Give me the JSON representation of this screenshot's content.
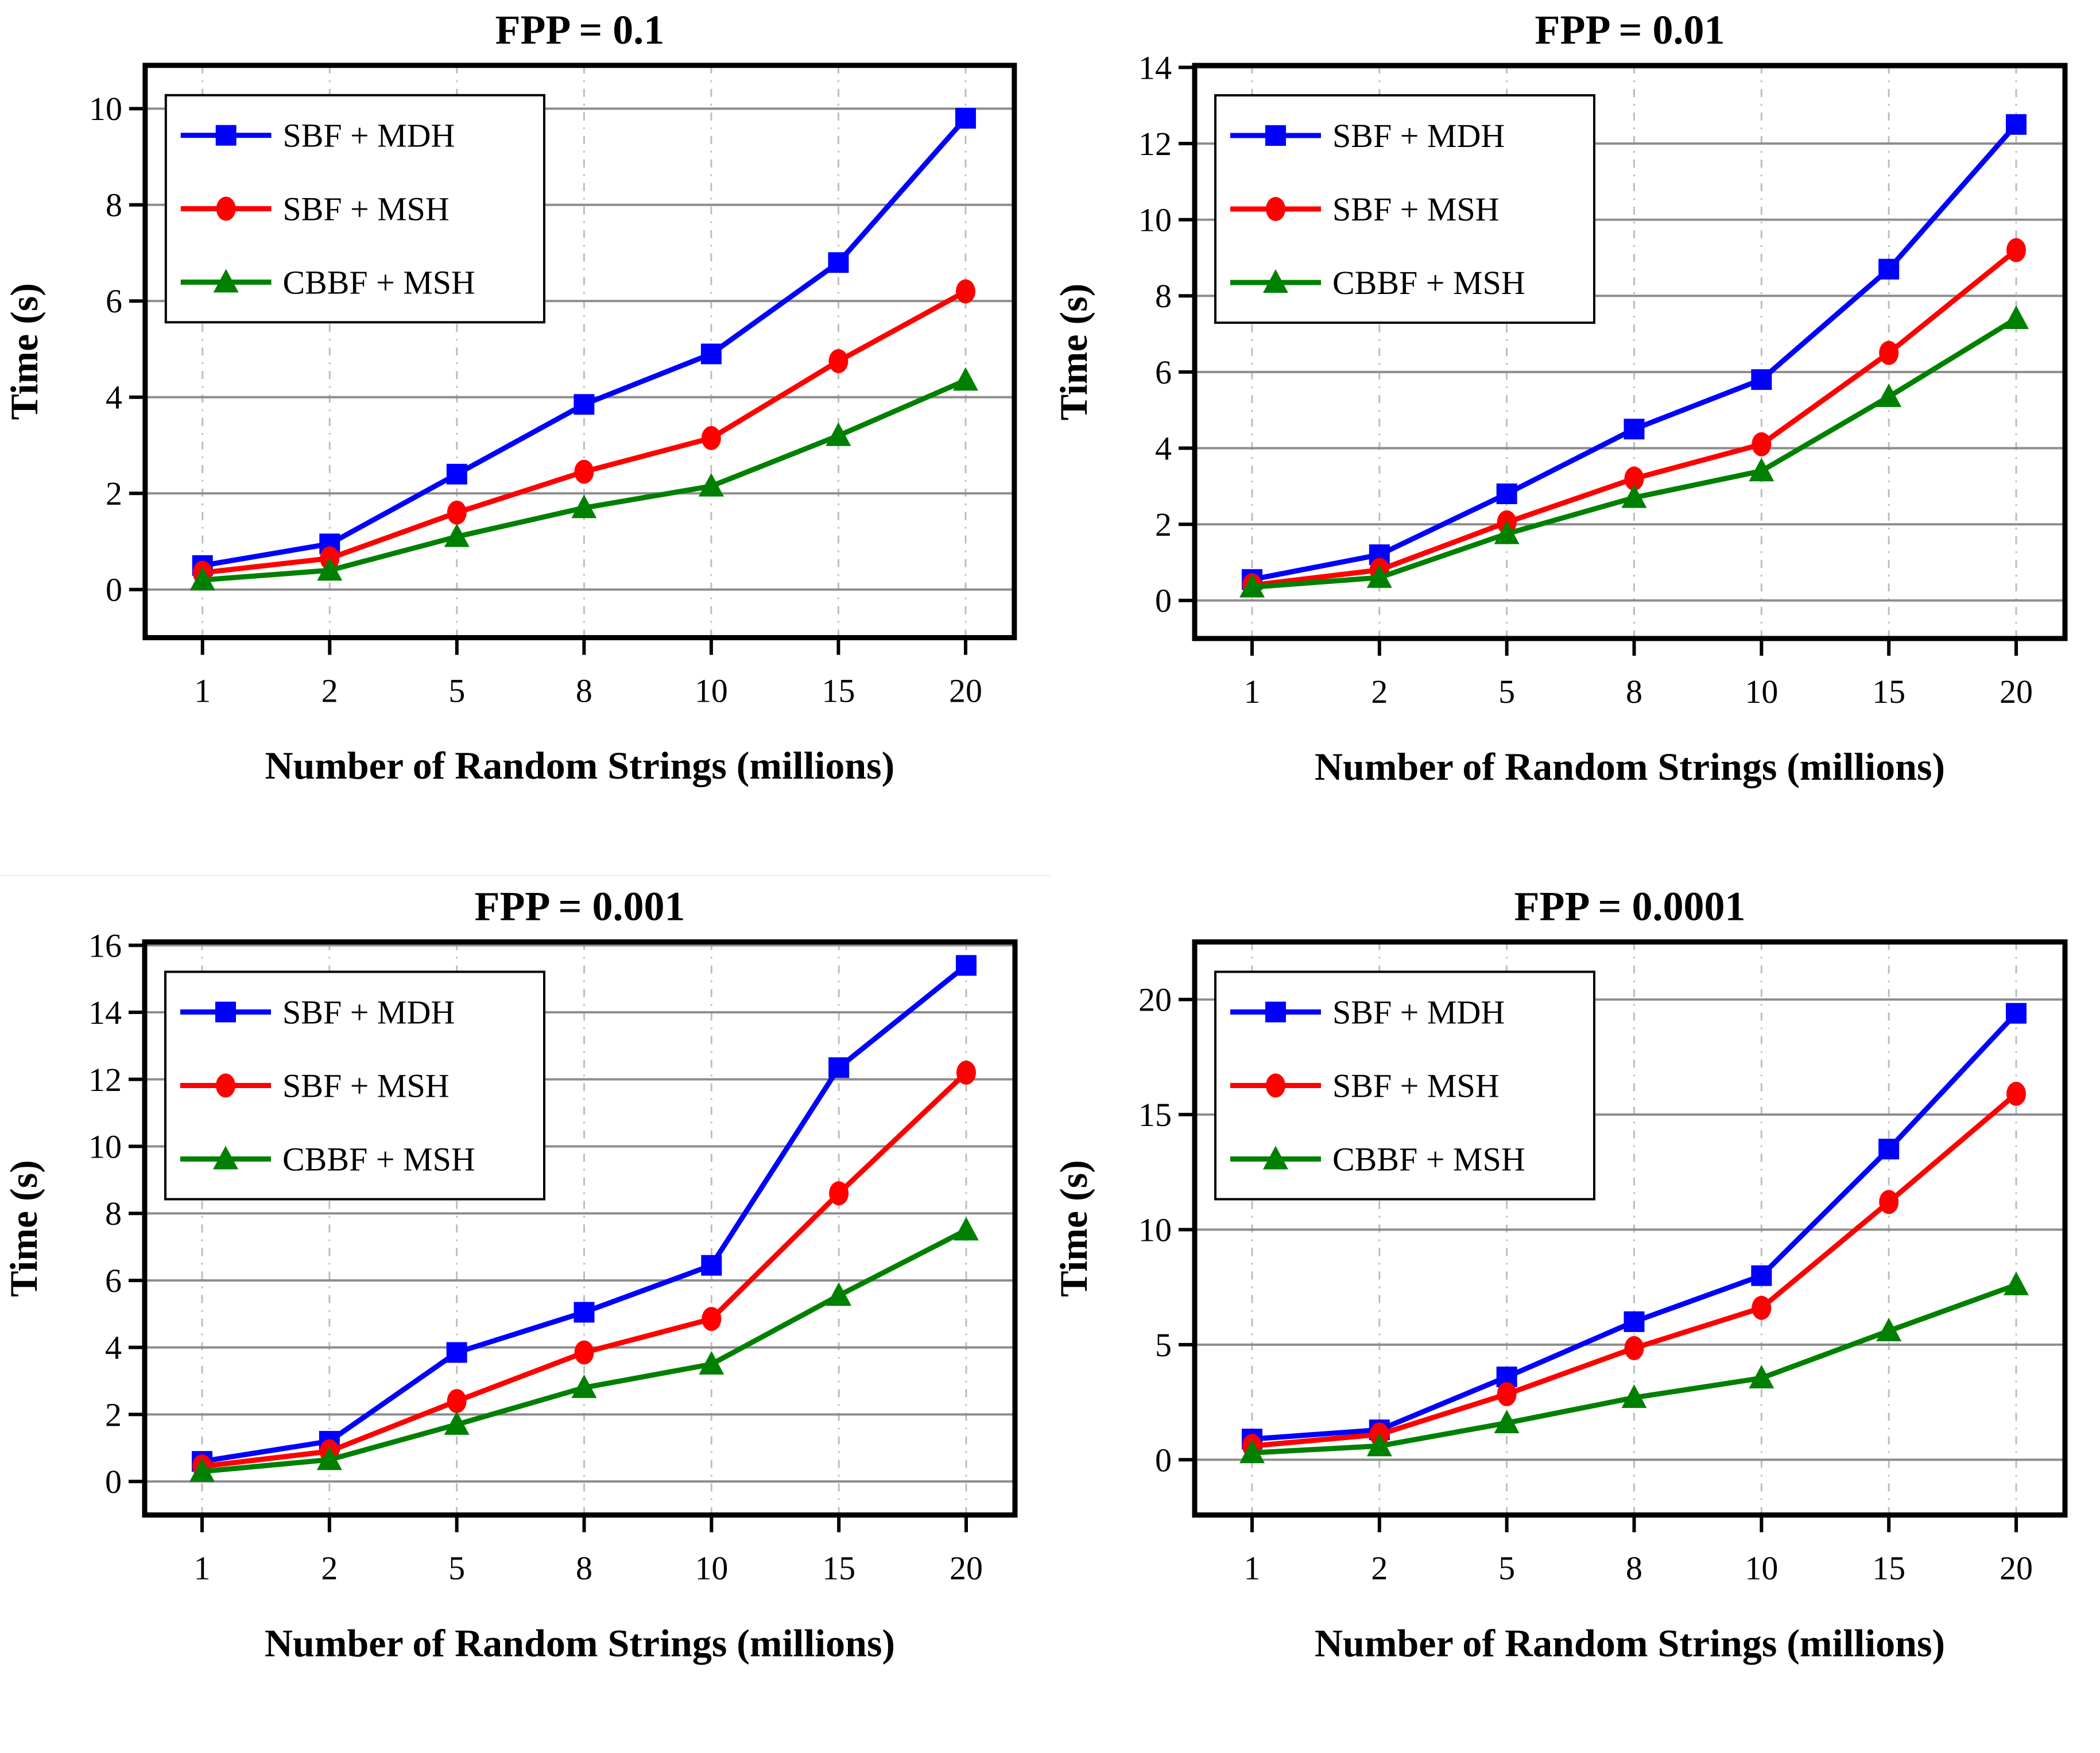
{
  "figure": {
    "layout": "2x2 grid of line charts",
    "x_label": "Number of Random Strings (millions)",
    "y_label": "Time (s)",
    "legend_entries": [
      "SBF + MDH",
      "SBF + MSH",
      "CBBF + MSH"
    ],
    "colors": {
      "sbf_mdh": "#0000fe",
      "sbf_msh": "#fe0000",
      "cbbf_msh": "#008000",
      "h_gridline": "#8d8d8d",
      "v_gridline": "#bdbdbd",
      "frame": "#000000",
      "text": "#000000",
      "legend_background": "#ffffff"
    }
  },
  "chart_data": [
    {
      "type": "line",
      "title": "FPP = 0.1",
      "xlabel": "Number of Random Strings (millions)",
      "ylabel": "Time (s)",
      "categories": [
        1,
        2,
        5,
        8,
        10,
        15,
        20
      ],
      "y_ticks": [
        0,
        2,
        4,
        6,
        8,
        10
      ],
      "ylim": [
        0,
        10
      ],
      "axis_range": [
        -1.0,
        10.9
      ],
      "grid": true,
      "legend_position": "top-left",
      "series": [
        {
          "name": "SBF + MDH",
          "color": "#0000fe",
          "marker": "square",
          "values": [
            0.5,
            0.95,
            2.4,
            3.85,
            4.9,
            6.8,
            9.8
          ]
        },
        {
          "name": "SBF + MSH",
          "color": "#fe0000",
          "marker": "circle",
          "values": [
            0.35,
            0.65,
            1.6,
            2.45,
            3.15,
            4.75,
            6.2
          ]
        },
        {
          "name": "CBBF + MSH",
          "color": "#008000",
          "marker": "triangle",
          "values": [
            0.2,
            0.4,
            1.1,
            1.7,
            2.15,
            3.2,
            4.35
          ]
        }
      ]
    },
    {
      "type": "line",
      "title": "FPP = 0.01",
      "xlabel": "Number of Random Strings (millions)",
      "ylabel": "Time (s)",
      "categories": [
        1,
        2,
        5,
        8,
        10,
        15,
        20
      ],
      "y_ticks": [
        0,
        2,
        4,
        6,
        8,
        10,
        12,
        14
      ],
      "ylim": [
        0,
        14
      ],
      "axis_range": [
        -1.0,
        14.05
      ],
      "grid": true,
      "legend_position": "top-left",
      "series": [
        {
          "name": "SBF + MDH",
          "color": "#0000fe",
          "marker": "square",
          "values": [
            0.55,
            1.2,
            2.8,
            4.5,
            5.8,
            8.7,
            12.5
          ]
        },
        {
          "name": "SBF + MSH",
          "color": "#fe0000",
          "marker": "circle",
          "values": [
            0.4,
            0.8,
            2.05,
            3.2,
            4.1,
            6.5,
            9.2
          ]
        },
        {
          "name": "CBBF + MSH",
          "color": "#008000",
          "marker": "triangle",
          "values": [
            0.35,
            0.6,
            1.75,
            2.7,
            3.4,
            5.35,
            7.4
          ]
        }
      ]
    },
    {
      "type": "line",
      "title": "FPP = 0.001",
      "xlabel": "Number of Random Strings (millions)",
      "ylabel": "Time (s)",
      "categories": [
        1,
        2,
        5,
        8,
        10,
        15,
        20
      ],
      "y_ticks": [
        0,
        2,
        4,
        6,
        8,
        10,
        12,
        14,
        16
      ],
      "ylim": [
        0,
        16
      ],
      "axis_range": [
        -1.0,
        16.1
      ],
      "grid": true,
      "legend_position": "top-left",
      "series": [
        {
          "name": "SBF + MDH",
          "color": "#0000fe",
          "marker": "square",
          "values": [
            0.6,
            1.2,
            3.85,
            5.05,
            6.45,
            12.35,
            15.4
          ]
        },
        {
          "name": "SBF + MSH",
          "color": "#fe0000",
          "marker": "circle",
          "values": [
            0.45,
            0.9,
            2.4,
            3.85,
            4.85,
            8.6,
            12.2
          ]
        },
        {
          "name": "CBBF + MSH",
          "color": "#008000",
          "marker": "triangle",
          "values": [
            0.3,
            0.65,
            1.7,
            2.8,
            3.5,
            5.55,
            7.5
          ]
        }
      ]
    },
    {
      "type": "line",
      "title": "FPP = 0.0001",
      "xlabel": "Number of Random Strings (millions)",
      "ylabel": "Time (s)",
      "categories": [
        1,
        2,
        5,
        8,
        10,
        15,
        20
      ],
      "y_ticks": [
        0,
        5,
        10,
        15,
        20
      ],
      "ylim": [
        0,
        20
      ],
      "axis_range": [
        -2.4,
        22.5
      ],
      "grid": true,
      "legend_position": "top-left",
      "series": [
        {
          "name": "SBF + MDH",
          "color": "#0000fe",
          "marker": "square",
          "values": [
            0.9,
            1.3,
            3.6,
            6.0,
            8.0,
            13.5,
            19.4
          ]
        },
        {
          "name": "SBF + MSH",
          "color": "#fe0000",
          "marker": "circle",
          "values": [
            0.6,
            1.1,
            2.85,
            4.85,
            6.6,
            11.2,
            15.9
          ]
        },
        {
          "name": "CBBF + MSH",
          "color": "#008000",
          "marker": "triangle",
          "values": [
            0.3,
            0.6,
            1.6,
            2.7,
            3.55,
            5.6,
            7.6
          ]
        }
      ]
    }
  ]
}
